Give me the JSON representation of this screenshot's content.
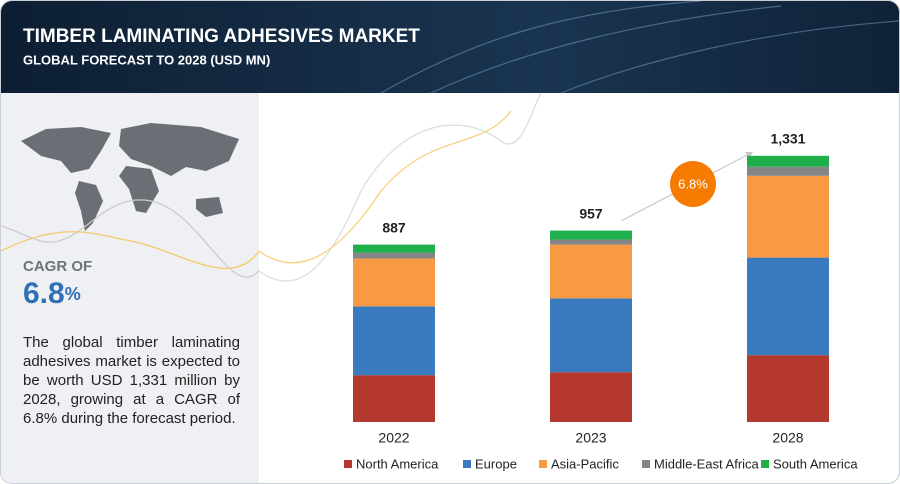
{
  "header": {
    "title": "TIMBER LAMINATING ADHESIVES MARKET",
    "subtitle": "GLOBAL FORECAST TO 2028 (USD MN)"
  },
  "sidebar": {
    "cagr_label": "CAGR OF",
    "cagr_value": "6.8",
    "cagr_unit": "%",
    "description": "The global timber laminating adhesives market is expected to be worth USD 1,331 million by 2028, growing at a CAGR of 6.8% during the forecast period."
  },
  "chart_data": {
    "type": "stacked_bar",
    "categories": [
      "2022",
      "2023",
      "2028"
    ],
    "series": [
      {
        "name": "North America",
        "color": "#b5382f",
        "values": [
          234,
          249,
          334
        ]
      },
      {
        "name": "Europe",
        "color": "#3a7bbf",
        "values": [
          344,
          369,
          488
        ]
      },
      {
        "name": "Asia-Pacific",
        "color": "#f89a44",
        "values": [
          239,
          269,
          409
        ]
      },
      {
        "name": "Middle-East Africa",
        "color": "#858585",
        "values": [
          30,
          25,
          45
        ]
      },
      {
        "name": "South America",
        "color": "#1fb04c",
        "values": [
          40,
          45,
          55
        ]
      }
    ],
    "totals": {
      "values": [
        887,
        957,
        1331
      ],
      "value_labels": [
        "887",
        "957",
        "1,331"
      ]
    },
    "annotation": "6.8%",
    "ylim": [
      0,
      1500
    ]
  }
}
